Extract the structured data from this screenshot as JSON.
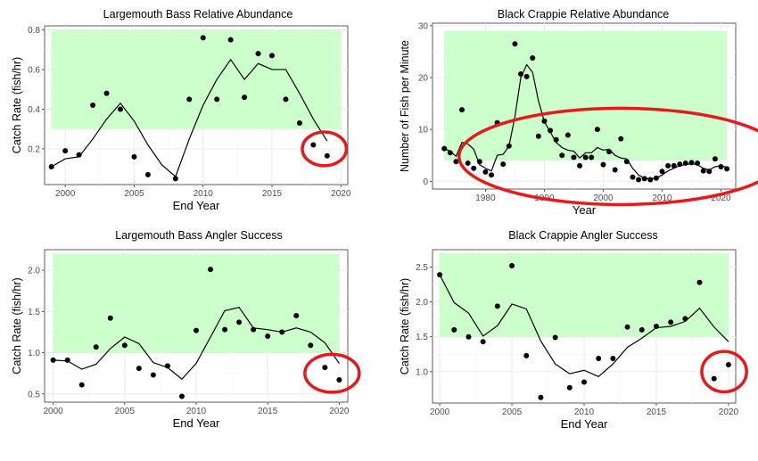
{
  "style": {
    "band_fill": "#ccffcc",
    "point_color": "#000000",
    "line_color": "#000000",
    "circle_color": "#e41a1c",
    "grid_color": "#ebebeb"
  },
  "chart_data": [
    {
      "type": "scatter",
      "title": "Largemouth Bass Relative Abundance",
      "xlabel": "End Year",
      "ylabel": "Catch Rate (fish/hr)",
      "xlim": [
        1998.5,
        2020.5
      ],
      "ylim": [
        0.02,
        0.82
      ],
      "xticks": [
        2000,
        2005,
        2010,
        2015,
        2020
      ],
      "yticks": [
        0.2,
        0.4,
        0.6,
        0.8
      ],
      "ytick_labels": [
        "0.2",
        "0.4",
        "0.6",
        "0.8"
      ],
      "grid": true,
      "band": {
        "x": [
          1999,
          2020
        ],
        "y": [
          0.3,
          0.8
        ]
      },
      "points": [
        [
          1999,
          0.11
        ],
        [
          2000,
          0.19
        ],
        [
          2001,
          0.17
        ],
        [
          2002,
          0.42
        ],
        [
          2003,
          0.48
        ],
        [
          2004,
          0.4
        ],
        [
          2005,
          0.16
        ],
        [
          2006,
          0.07
        ],
        [
          2008,
          0.05
        ],
        [
          2009,
          0.45
        ],
        [
          2010,
          0.76
        ],
        [
          2011,
          0.45
        ],
        [
          2012,
          0.75
        ],
        [
          2013,
          0.46
        ],
        [
          2014,
          0.68
        ],
        [
          2015,
          0.67
        ],
        [
          2016,
          0.45
        ],
        [
          2017,
          0.33
        ],
        [
          2018,
          0.22
        ],
        [
          2019,
          0.165
        ]
      ],
      "line": [
        [
          1999,
          0.11
        ],
        [
          2000,
          0.15
        ],
        [
          2001,
          0.16
        ],
        [
          2002,
          0.25
        ],
        [
          2003,
          0.35
        ],
        [
          2004,
          0.43
        ],
        [
          2005,
          0.34
        ],
        [
          2006,
          0.22
        ],
        [
          2007,
          0.12
        ],
        [
          2008,
          0.06
        ],
        [
          2009,
          0.25
        ],
        [
          2010,
          0.42
        ],
        [
          2011,
          0.55
        ],
        [
          2012,
          0.65
        ],
        [
          2013,
          0.55
        ],
        [
          2014,
          0.63
        ],
        [
          2015,
          0.6
        ],
        [
          2016,
          0.6
        ],
        [
          2017,
          0.48
        ],
        [
          2018,
          0.35
        ],
        [
          2019,
          0.24
        ]
      ],
      "highlight": {
        "x": 2018.8,
        "y": 0.2,
        "rx_years": 1.6,
        "ry_units": 0.085
      }
    },
    {
      "type": "scatter",
      "title": "Black Crappie Relative Abundance",
      "xlabel": "Year",
      "ylabel": "Number of Fish per Minute",
      "xlim": [
        1971,
        2022.5
      ],
      "ylim": [
        -1.5,
        30.5
      ],
      "xticks": [
        1980,
        1990,
        2000,
        2010,
        2020
      ],
      "yticks": [
        0,
        10,
        20,
        30
      ],
      "ytick_labels": [
        "0",
        "10",
        "20",
        "30"
      ],
      "grid": true,
      "band": {
        "x": [
          1973,
          2021
        ],
        "y": [
          4,
          29
        ]
      },
      "points": [
        [
          1973,
          6.3
        ],
        [
          1974,
          5.5
        ],
        [
          1975,
          3.8
        ],
        [
          1976,
          13.8
        ],
        [
          1977,
          3.5
        ],
        [
          1978,
          2.5
        ],
        [
          1979,
          3.8
        ],
        [
          1980,
          1.8
        ],
        [
          1981,
          1.2
        ],
        [
          1982,
          11.3
        ],
        [
          1983,
          3.3
        ],
        [
          1984,
          6.8
        ],
        [
          1985,
          26.5
        ],
        [
          1986,
          20.7
        ],
        [
          1987,
          20.2
        ],
        [
          1988,
          23.8
        ],
        [
          1989,
          8.7
        ],
        [
          1990,
          11.6
        ],
        [
          1991,
          9.8
        ],
        [
          1992,
          8.0
        ],
        [
          1993,
          5.0
        ],
        [
          1994,
          8.9
        ],
        [
          1995,
          4.6
        ],
        [
          1996,
          3.0
        ],
        [
          1997,
          4.6
        ],
        [
          1998,
          4.6
        ],
        [
          1999,
          10.0
        ],
        [
          2000,
          3.2
        ],
        [
          2001,
          5.7
        ],
        [
          2002,
          2.2
        ],
        [
          2003,
          8.2
        ],
        [
          2004,
          3.8
        ],
        [
          2005,
          0.8
        ],
        [
          2006,
          0.3
        ],
        [
          2007,
          0.5
        ],
        [
          2008,
          0.3
        ],
        [
          2009,
          0.6
        ],
        [
          2010,
          1.9
        ],
        [
          2011,
          3.0
        ],
        [
          2012,
          3.0
        ],
        [
          2013,
          3.3
        ],
        [
          2014,
          3.5
        ],
        [
          2015,
          3.6
        ],
        [
          2016,
          3.5
        ],
        [
          2017,
          2.0
        ],
        [
          2018,
          1.9
        ],
        [
          2019,
          4.3
        ],
        [
          2020,
          2.8
        ],
        [
          2021,
          2.4
        ]
      ],
      "line": [
        [
          1973,
          6.3
        ],
        [
          1974,
          5.8
        ],
        [
          1975,
          4.8
        ],
        [
          1976,
          7.5
        ],
        [
          1977,
          7.2
        ],
        [
          1978,
          6.2
        ],
        [
          1979,
          3.2
        ],
        [
          1980,
          2.5
        ],
        [
          1981,
          2.0
        ],
        [
          1982,
          5.0
        ],
        [
          1983,
          5.2
        ],
        [
          1984,
          6.8
        ],
        [
          1985,
          12.5
        ],
        [
          1986,
          20.0
        ],
        [
          1987,
          22.5
        ],
        [
          1988,
          21.0
        ],
        [
          1989,
          15.5
        ],
        [
          1990,
          11.5
        ],
        [
          1991,
          9.5
        ],
        [
          1992,
          7.5
        ],
        [
          1993,
          6.5
        ],
        [
          1994,
          6.0
        ],
        [
          1995,
          5.8
        ],
        [
          1996,
          4.5
        ],
        [
          1997,
          5.5
        ],
        [
          1998,
          5.5
        ],
        [
          1999,
          6.5
        ],
        [
          2000,
          6.0
        ],
        [
          2001,
          6.2
        ],
        [
          2002,
          5.0
        ],
        [
          2003,
          4.5
        ],
        [
          2004,
          4.3
        ],
        [
          2005,
          2.5
        ],
        [
          2006,
          1.2
        ],
        [
          2007,
          0.6
        ],
        [
          2008,
          0.5
        ],
        [
          2009,
          0.6
        ],
        [
          2010,
          1.2
        ],
        [
          2011,
          2.0
        ],
        [
          2012,
          2.5
        ],
        [
          2013,
          3.0
        ],
        [
          2014,
          3.2
        ],
        [
          2015,
          3.4
        ],
        [
          2016,
          3.2
        ],
        [
          2017,
          2.5
        ],
        [
          2018,
          2.2
        ],
        [
          2019,
          2.8
        ],
        [
          2020,
          3.0
        ],
        [
          2021,
          2.7
        ]
      ],
      "highlight": {
        "x": 2003,
        "y": 4.8,
        "rx_years": 27.5,
        "ry_units": 9.3
      }
    },
    {
      "type": "scatter",
      "title": "Largemouth Bass Angler Success",
      "xlabel": "End Year",
      "ylabel": "Catch Rate (fish/hr)",
      "xlim": [
        1999.4,
        2020.6
      ],
      "ylim": [
        0.4,
        2.25
      ],
      "xticks": [
        2000,
        2005,
        2010,
        2015,
        2020
      ],
      "yticks": [
        0.5,
        1.0,
        1.5,
        2.0
      ],
      "ytick_labels": [
        "0.5",
        "1.0",
        "1.5",
        "2.0"
      ],
      "grid": true,
      "band": {
        "x": [
          2000,
          2020
        ],
        "y": [
          1.0,
          2.2
        ]
      },
      "points": [
        [
          2000,
          0.91
        ],
        [
          2001,
          0.91
        ],
        [
          2002,
          0.61
        ],
        [
          2003,
          1.07
        ],
        [
          2004,
          1.42
        ],
        [
          2005,
          1.09
        ],
        [
          2006,
          0.81
        ],
        [
          2007,
          0.73
        ],
        [
          2008,
          0.84
        ],
        [
          2009,
          0.47
        ],
        [
          2010,
          1.27
        ],
        [
          2011,
          2.01
        ],
        [
          2012,
          1.28
        ],
        [
          2013,
          1.37
        ],
        [
          2014,
          1.28
        ],
        [
          2015,
          1.2
        ],
        [
          2016,
          1.25
        ],
        [
          2017,
          1.45
        ],
        [
          2018,
          1.09
        ],
        [
          2019,
          0.82
        ],
        [
          2020,
          0.67
        ]
      ],
      "line": [
        [
          2000,
          0.91
        ],
        [
          2001,
          0.9
        ],
        [
          2002,
          0.8
        ],
        [
          2003,
          0.86
        ],
        [
          2004,
          1.05
        ],
        [
          2005,
          1.19
        ],
        [
          2006,
          1.11
        ],
        [
          2007,
          0.88
        ],
        [
          2008,
          0.82
        ],
        [
          2009,
          0.68
        ],
        [
          2010,
          0.87
        ],
        [
          2011,
          1.19
        ],
        [
          2012,
          1.51
        ],
        [
          2013,
          1.55
        ],
        [
          2014,
          1.3
        ],
        [
          2015,
          1.28
        ],
        [
          2016,
          1.25
        ],
        [
          2017,
          1.3
        ],
        [
          2018,
          1.25
        ],
        [
          2019,
          1.12
        ],
        [
          2020,
          0.87
        ]
      ],
      "highlight": {
        "x": 2019.5,
        "y": 0.75,
        "rx_years": 1.9,
        "ry_units": 0.23
      }
    },
    {
      "type": "scatter",
      "title": "Black Crappie Angler Success",
      "xlabel": "End Year",
      "ylabel": "Catch Rate (fish/hr)",
      "xlim": [
        1999.5,
        2020.5
      ],
      "ylim": [
        0.55,
        2.75
      ],
      "xticks": [
        2000,
        2005,
        2010,
        2015,
        2020
      ],
      "yticks": [
        1.0,
        1.5,
        2.0,
        2.5
      ],
      "ytick_labels": [
        "1.0",
        "1.5",
        "2.0",
        "2.5"
      ],
      "grid": true,
      "band": {
        "x": [
          2000,
          2020
        ],
        "y": [
          1.5,
          2.7
        ]
      },
      "points": [
        [
          2000,
          2.39
        ],
        [
          2001,
          1.6
        ],
        [
          2002,
          1.5
        ],
        [
          2003,
          1.43
        ],
        [
          2004,
          1.94
        ],
        [
          2005,
          2.52
        ],
        [
          2006,
          1.23
        ],
        [
          2007,
          0.63
        ],
        [
          2008,
          1.49
        ],
        [
          2009,
          0.77
        ],
        [
          2010,
          0.85
        ],
        [
          2011,
          1.19
        ],
        [
          2012,
          1.19
        ],
        [
          2013,
          1.64
        ],
        [
          2014,
          1.6
        ],
        [
          2015,
          1.65
        ],
        [
          2016,
          1.71
        ],
        [
          2017,
          1.76
        ],
        [
          2018,
          2.28
        ],
        [
          2019,
          0.9
        ],
        [
          2020,
          1.1
        ]
      ],
      "line": [
        [
          2000,
          2.39
        ],
        [
          2001,
          1.99
        ],
        [
          2002,
          1.84
        ],
        [
          2003,
          1.51
        ],
        [
          2004,
          1.66
        ],
        [
          2005,
          1.97
        ],
        [
          2006,
          1.9
        ],
        [
          2007,
          1.44
        ],
        [
          2008,
          1.11
        ],
        [
          2009,
          0.97
        ],
        [
          2010,
          1.02
        ],
        [
          2011,
          0.93
        ],
        [
          2012,
          1.11
        ],
        [
          2013,
          1.35
        ],
        [
          2014,
          1.48
        ],
        [
          2015,
          1.63
        ],
        [
          2016,
          1.65
        ],
        [
          2017,
          1.72
        ],
        [
          2018,
          1.91
        ],
        [
          2019,
          1.64
        ],
        [
          2020,
          1.43
        ]
      ],
      "highlight": {
        "x": 2019.7,
        "y": 1.0,
        "rx_years": 1.55,
        "ry_units": 0.29
      }
    }
  ]
}
